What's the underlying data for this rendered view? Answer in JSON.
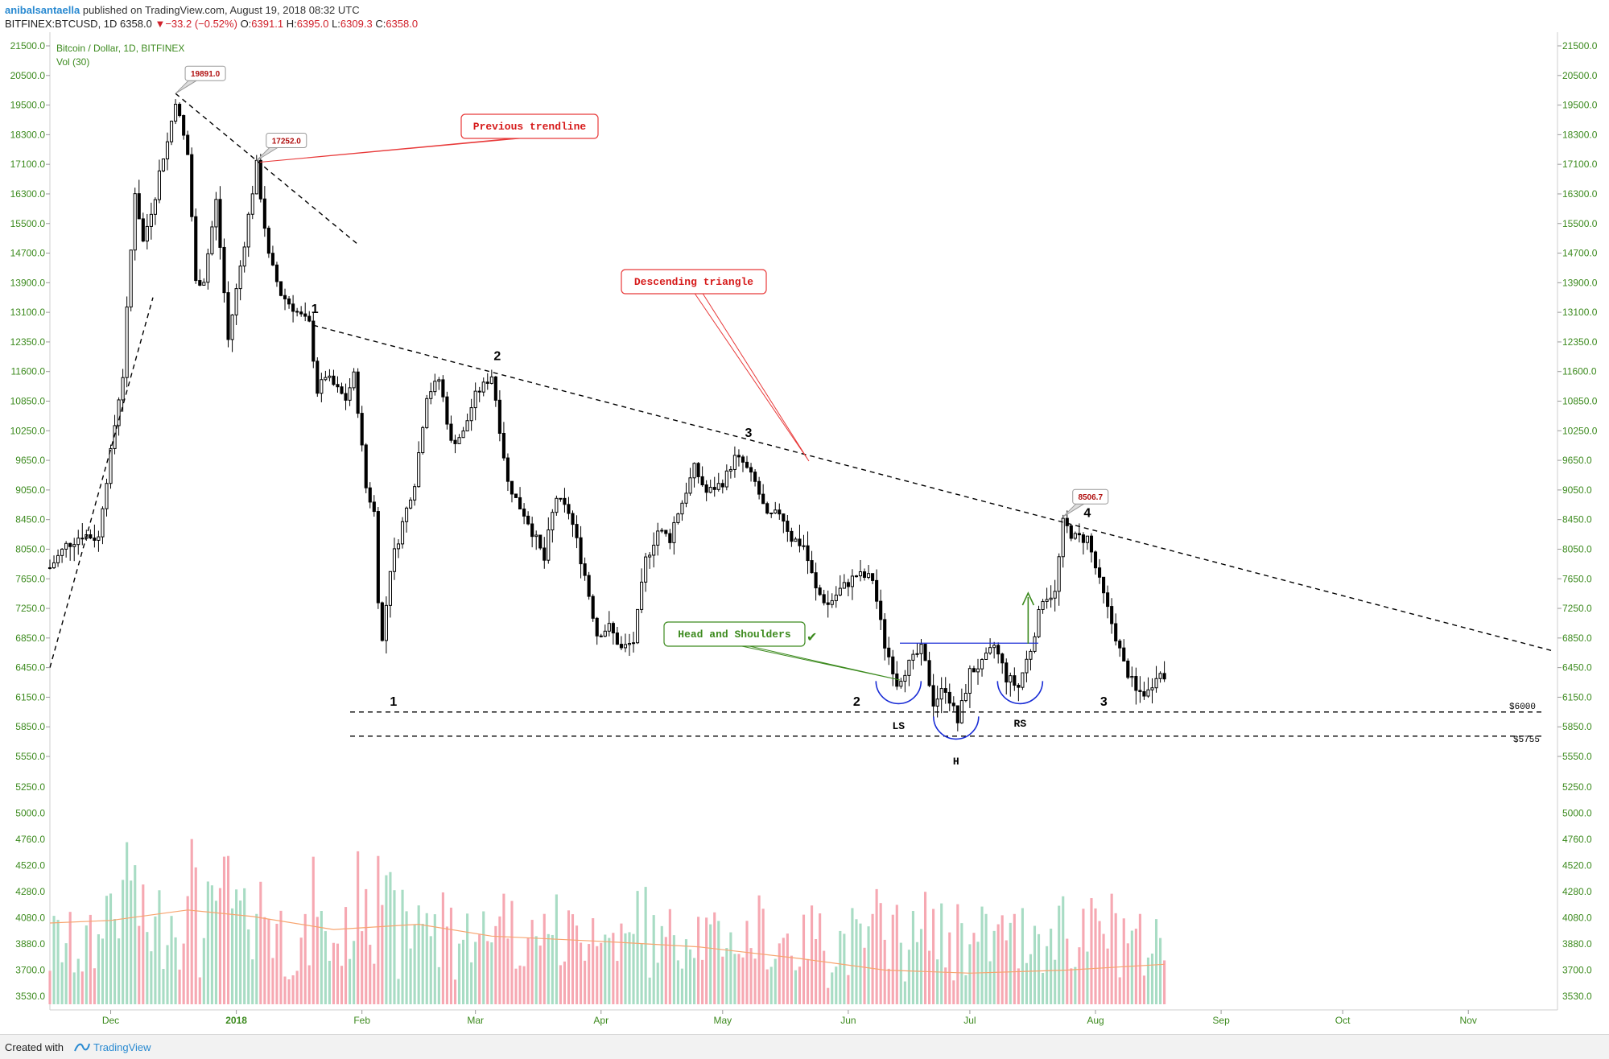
{
  "header": {
    "user": "anibalsantaella",
    "published": "published on TradingView.com, August 19, 2018 08:32 UTC",
    "symbol": "BITFINEX:BTCUSD, 1D",
    "last": "6358.0",
    "change_arrow": "▼",
    "change": "−33.2 (−0.52%)",
    "o_label": "O:",
    "o": "6391.1",
    "h_label": "H:",
    "h": "6395.0",
    "l_label": "L:",
    "l": "6309.3",
    "c_label": "C:",
    "c": "6358.0"
  },
  "legend": {
    "title": "Bitcoin / Dollar, 1D, BITFINEX",
    "vol": "Vol (30)"
  },
  "colors": {
    "up": "#ffffff",
    "down": "#000000",
    "axis_text": "#3c8a1e",
    "vol_up": "#a8dcc4",
    "vol_down": "#f6a8b2",
    "vol_ma": "#f7a46f",
    "annotation_red": "#e83a3a",
    "annotation_green": "#3c8a1e",
    "neckline": "#1a2dd6",
    "tv_blue": "#2a8ad1"
  },
  "chart_data": {
    "type": "candlestick",
    "price_axis_ticks": [
      21500,
      20500,
      19500,
      18300,
      17100,
      16300,
      15500,
      14700,
      13900,
      13100,
      12350,
      11600,
      10850,
      10250,
      9650,
      9050,
      8450,
      8050,
      7650,
      7250,
      6850,
      6450,
      6150,
      5850,
      5550
    ],
    "price_axis_labels": [
      "21500.0",
      "20500.0",
      "19500.0",
      "18300.0",
      "17100.0",
      "16300.0",
      "15500.0",
      "14700.0",
      "13900.0",
      "13100.0",
      "12350.0",
      "11600.0",
      "10850.0",
      "10250.0",
      "9650.0",
      "9050.0",
      "8450.0",
      "8050.0",
      "7650.0",
      "7250.0",
      "6850.0",
      "6450.0",
      "6150.0",
      "5850.0",
      "5550.0"
    ],
    "volume_axis_ticks": [
      5250,
      5000,
      4760,
      4520,
      4280,
      4080,
      3880,
      3700,
      3530
    ],
    "volume_axis_labels": [
      "5250.0",
      "5000.0",
      "4760.0",
      "4520.0",
      "4280.0",
      "4080.0",
      "3880.0",
      "3700.0",
      "3530.0"
    ],
    "x_axis_labels": [
      "Dec",
      "2018",
      "Feb",
      "Mar",
      "Apr",
      "May",
      "Jun",
      "Jul",
      "Aug",
      "Sep",
      "Oct",
      "Nov"
    ],
    "x_axis_dates": [
      "2017-12-01",
      "2018-01-01",
      "2018-02-01",
      "2018-03-01",
      "2018-04-01",
      "2018-05-01",
      "2018-06-01",
      "2018-07-01",
      "2018-08-01",
      "2018-09-01",
      "2018-10-01",
      "2018-11-01"
    ],
    "x_range": [
      "2017-11-16",
      "2018-11-23"
    ],
    "close_path": [
      [
        "2017-11-16",
        7800
      ],
      [
        "2017-11-20",
        8100
      ],
      [
        "2017-11-24",
        8250
      ],
      [
        "2017-11-28",
        8200
      ],
      [
        "2017-12-01",
        9800
      ],
      [
        "2017-12-04",
        11500
      ],
      [
        "2017-12-07",
        16400
      ],
      [
        "2017-12-09",
        15000
      ],
      [
        "2017-12-12",
        16300
      ],
      [
        "2017-12-15",
        18000
      ],
      [
        "2017-12-17",
        19700
      ],
      [
        "2017-12-20",
        17500
      ],
      [
        "2017-12-22",
        13900
      ],
      [
        "2017-12-24",
        14000
      ],
      [
        "2017-12-27",
        16100
      ],
      [
        "2017-12-30",
        12400
      ],
      [
        "2018-01-03",
        15000
      ],
      [
        "2018-01-06",
        17100
      ],
      [
        "2018-01-09",
        14600
      ],
      [
        "2018-01-12",
        13600
      ],
      [
        "2018-01-16",
        13100
      ],
      [
        "2018-01-19",
        12800
      ],
      [
        "2018-01-21",
        11100
      ],
      [
        "2018-01-23",
        11500
      ],
      [
        "2018-01-28",
        10900
      ],
      [
        "2018-01-30",
        11500
      ],
      [
        "2018-02-02",
        9100
      ],
      [
        "2018-02-04",
        8600
      ],
      [
        "2018-02-05",
        7400
      ],
      [
        "2018-02-06",
        6800
      ],
      [
        "2018-02-08",
        7800
      ],
      [
        "2018-02-11",
        8400
      ],
      [
        "2018-02-14",
        9200
      ],
      [
        "2018-02-17",
        11000
      ],
      [
        "2018-02-20",
        11400
      ],
      [
        "2018-02-23",
        10000
      ],
      [
        "2018-02-26",
        10200
      ],
      [
        "2018-03-01",
        11000
      ],
      [
        "2018-03-05",
        11500
      ],
      [
        "2018-03-07",
        10300
      ],
      [
        "2018-03-09",
        9200
      ],
      [
        "2018-03-12",
        8700
      ],
      [
        "2018-03-15",
        8300
      ],
      [
        "2018-03-18",
        7900
      ],
      [
        "2018-03-21",
        8900
      ],
      [
        "2018-03-24",
        8600
      ],
      [
        "2018-03-28",
        7700
      ],
      [
        "2018-03-31",
        6900
      ],
      [
        "2018-04-03",
        7000
      ],
      [
        "2018-04-06",
        6700
      ],
      [
        "2018-04-09",
        6800
      ],
      [
        "2018-04-12",
        7900
      ],
      [
        "2018-04-15",
        8300
      ],
      [
        "2018-04-18",
        8200
      ],
      [
        "2018-04-21",
        8800
      ],
      [
        "2018-04-24",
        9500
      ],
      [
        "2018-04-27",
        9000
      ],
      [
        "2018-05-01",
        9200
      ],
      [
        "2018-05-04",
        9700
      ],
      [
        "2018-05-06",
        9600
      ],
      [
        "2018-05-09",
        9200
      ],
      [
        "2018-05-12",
        8500
      ],
      [
        "2018-05-15",
        8600
      ],
      [
        "2018-05-18",
        8200
      ],
      [
        "2018-05-21",
        8100
      ],
      [
        "2018-05-24",
        7500
      ],
      [
        "2018-05-27",
        7300
      ],
      [
        "2018-05-30",
        7500
      ],
      [
        "2018-06-03",
        7700
      ],
      [
        "2018-06-07",
        7650
      ],
      [
        "2018-06-10",
        6750
      ],
      [
        "2018-06-13",
        6300
      ],
      [
        "2018-06-16",
        6500
      ],
      [
        "2018-06-19",
        6700
      ],
      [
        "2018-06-22",
        6100
      ],
      [
        "2018-06-25",
        6250
      ],
      [
        "2018-06-28",
        5900
      ],
      [
        "2018-07-01",
        6400
      ],
      [
        "2018-07-04",
        6500
      ],
      [
        "2018-07-07",
        6750
      ],
      [
        "2018-07-10",
        6350
      ],
      [
        "2018-07-13",
        6250
      ],
      [
        "2018-07-16",
        6700
      ],
      [
        "2018-07-19",
        7400
      ],
      [
        "2018-07-22",
        7450
      ],
      [
        "2018-07-24",
        8400
      ],
      [
        "2018-07-27",
        8200
      ],
      [
        "2018-07-30",
        8200
      ],
      [
        "2018-08-02",
        7600
      ],
      [
        "2018-08-05",
        7050
      ],
      [
        "2018-08-08",
        6500
      ],
      [
        "2018-08-11",
        6200
      ],
      [
        "2018-08-14",
        6200
      ],
      [
        "2018-08-16",
        6400
      ],
      [
        "2018-08-18",
        6358
      ]
    ],
    "volume_ma_path": [
      [
        "2017-11-16",
        4040
      ],
      [
        "2017-12-01",
        4060
      ],
      [
        "2017-12-20",
        4140
      ],
      [
        "2018-01-05",
        4090
      ],
      [
        "2018-01-25",
        3990
      ],
      [
        "2018-02-15",
        4030
      ],
      [
        "2018-03-05",
        3940
      ],
      [
        "2018-04-01",
        3900
      ],
      [
        "2018-04-25",
        3860
      ],
      [
        "2018-05-20",
        3780
      ],
      [
        "2018-06-10",
        3700
      ],
      [
        "2018-07-01",
        3680
      ],
      [
        "2018-07-25",
        3700
      ],
      [
        "2018-08-18",
        3740
      ]
    ],
    "annotations": {
      "high_1": {
        "label": "19891.0",
        "date": "2017-12-17",
        "price": 19891
      },
      "high_2": {
        "label": "17252.0",
        "date": "2018-01-06",
        "price": 17252
      },
      "high_3": {
        "label": "8506.7",
        "date": "2018-07-24",
        "price": 8506.7
      },
      "previous_trendline_label": "Previous trendline",
      "descending_triangle_label": "Descending triangle",
      "head_shoulders_label": "Head and Shoulders",
      "check_mark": "✔",
      "upper_points": [
        {
          "label": "1",
          "date": "2018-01-19",
          "price": 12800
        },
        {
          "label": "2",
          "date": "2018-03-05",
          "price": 11600
        },
        {
          "label": "3",
          "date": "2018-05-06",
          "price": 9900
        },
        {
          "label": "4",
          "date": "2018-07-25",
          "price": 8400
        }
      ],
      "lower_points": [
        {
          "label": "1",
          "date": "2018-02-06",
          "price": 6000
        },
        {
          "label": "2",
          "date": "2018-06-13",
          "price": 6150
        },
        {
          "label": "3",
          "date": "2018-08-11",
          "price": 6000
        }
      ],
      "support_1": {
        "label": "$6000",
        "price": 6000
      },
      "support_2": {
        "label": "$5755",
        "price": 5755
      },
      "neckline_price": 6780,
      "ls": {
        "label": "LS",
        "date": "2018-06-13"
      },
      "h": {
        "label": "H",
        "date": "2018-06-28"
      },
      "rs": {
        "label": "RS",
        "date": "2018-07-13"
      }
    }
  },
  "footer": {
    "created": "Created with",
    "brand": "TradingView"
  }
}
